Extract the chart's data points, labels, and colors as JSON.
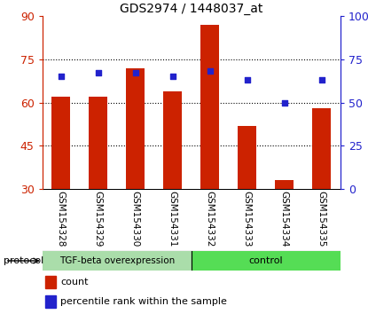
{
  "title": "GDS2974 / 1448037_at",
  "samples": [
    "GSM154328",
    "GSM154329",
    "GSM154330",
    "GSM154331",
    "GSM154332",
    "GSM154333",
    "GSM154334",
    "GSM154335"
  ],
  "red_bar_values": [
    62,
    62,
    72,
    64,
    87,
    52,
    33,
    58
  ],
  "blue_square_values": [
    65,
    67,
    67,
    65,
    68,
    63,
    50,
    63
  ],
  "ymin": 30,
  "ymax": 90,
  "yticks": [
    30,
    45,
    60,
    75,
    90
  ],
  "right_yticks": [
    0,
    25,
    50,
    75,
    100
  ],
  "right_ytick_labels": [
    "0",
    "25",
    "50",
    "75",
    "100%"
  ],
  "bar_color": "#cc2200",
  "square_color": "#2222cc",
  "tgf_color": "#aaddaa",
  "ctrl_color": "#55dd55",
  "xlabel_bg": "#cccccc",
  "protocol_label": "protocol",
  "legend_count": "count",
  "legend_pct": "percentile rank within the sample",
  "bg_color": "#ffffff"
}
